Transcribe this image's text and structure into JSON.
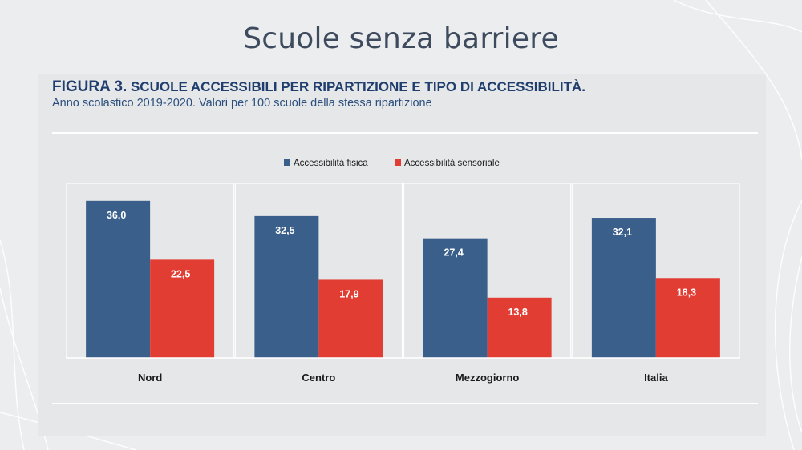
{
  "slide": {
    "title": "Scuole senza barriere"
  },
  "figure": {
    "label": "FIGURA 3.",
    "heading": " SCUOLE ACCESSIBILI PER RIPARTIZIONE E TIPO DI ACCESSIBILITÀ.",
    "subtitle": "Anno scolastico 2019-2020. Valori per 100 scuole della stessa ripartizione"
  },
  "colors": {
    "fisica": "#3a5f8b",
    "sensoriale": "#e23d33",
    "title": "#3e4b5f",
    "heading": "#1f3d6d"
  },
  "chart_data": {
    "type": "bar",
    "categories": [
      "Nord",
      "Centro",
      "Mezzogiorno",
      "Italia"
    ],
    "series": [
      {
        "name": "Accessibilità fisica",
        "values": [
          36.0,
          32.5,
          27.4,
          32.1
        ],
        "labels": [
          "36,0",
          "32,5",
          "27,4",
          "32,1"
        ],
        "color": "#3a5f8b"
      },
      {
        "name": "Accessibilità sensoriale",
        "values": [
          22.5,
          17.9,
          13.8,
          18.3
        ],
        "labels": [
          "22,5",
          "17,9",
          "13,8",
          "18,3"
        ],
        "color": "#e23d33"
      }
    ],
    "ylim": [
      0,
      40
    ],
    "legend": "top-center",
    "grid": false,
    "xlabel": "",
    "ylabel": ""
  }
}
